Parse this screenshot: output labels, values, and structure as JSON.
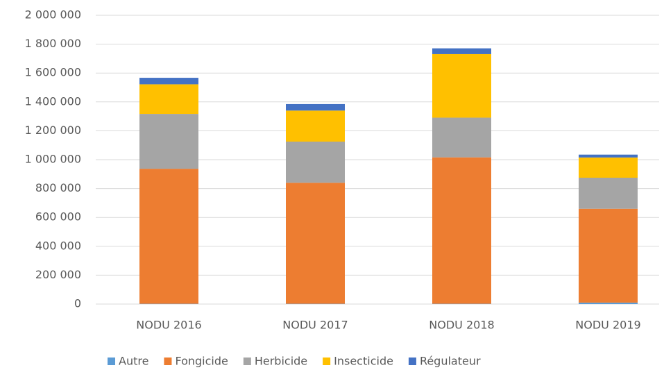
{
  "chart_data": {
    "type": "stacked_bar",
    "categories": [
      "NODU 2016",
      "NODU 2017",
      "NODU 2018",
      "NODU 2019"
    ],
    "series": [
      {
        "name": "Autre",
        "color": "#5b9bd5",
        "values": [
          2000,
          2000,
          2000,
          10000
        ]
      },
      {
        "name": "Fongicide",
        "color": "#ed7d31",
        "values": [
          935000,
          838000,
          1014000,
          650000
        ]
      },
      {
        "name": "Herbicide",
        "color": "#a5a5a5",
        "values": [
          380000,
          285000,
          275000,
          215000
        ]
      },
      {
        "name": "Insecticide",
        "color": "#ffc000",
        "values": [
          205000,
          215000,
          440000,
          140000
        ]
      },
      {
        "name": "Régulateur",
        "color": "#4472c4",
        "values": [
          45000,
          45000,
          40000,
          20000
        ]
      }
    ],
    "ylim": [
      0,
      2000000
    ],
    "yticks": [
      0,
      {
        "value": 200000,
        "label": "200 000"
      },
      {
        "value": 400000,
        "label": "400 000"
      },
      {
        "value": 600000,
        "label": "600 000"
      },
      {
        "value": 800000,
        "label": "800 000"
      },
      {
        "value": 1000000,
        "label": "1 000 000"
      },
      {
        "value": 1200000,
        "label": "1 200 000"
      },
      {
        "value": 1400000,
        "label": "1 400 000"
      },
      {
        "value": 1600000,
        "label": "1 600 000"
      },
      {
        "value": 1800000,
        "label": "1 800 000"
      },
      {
        "value": 2000000,
        "label": "2 000 000"
      }
    ],
    "grid": true,
    "legend": "bottom"
  }
}
